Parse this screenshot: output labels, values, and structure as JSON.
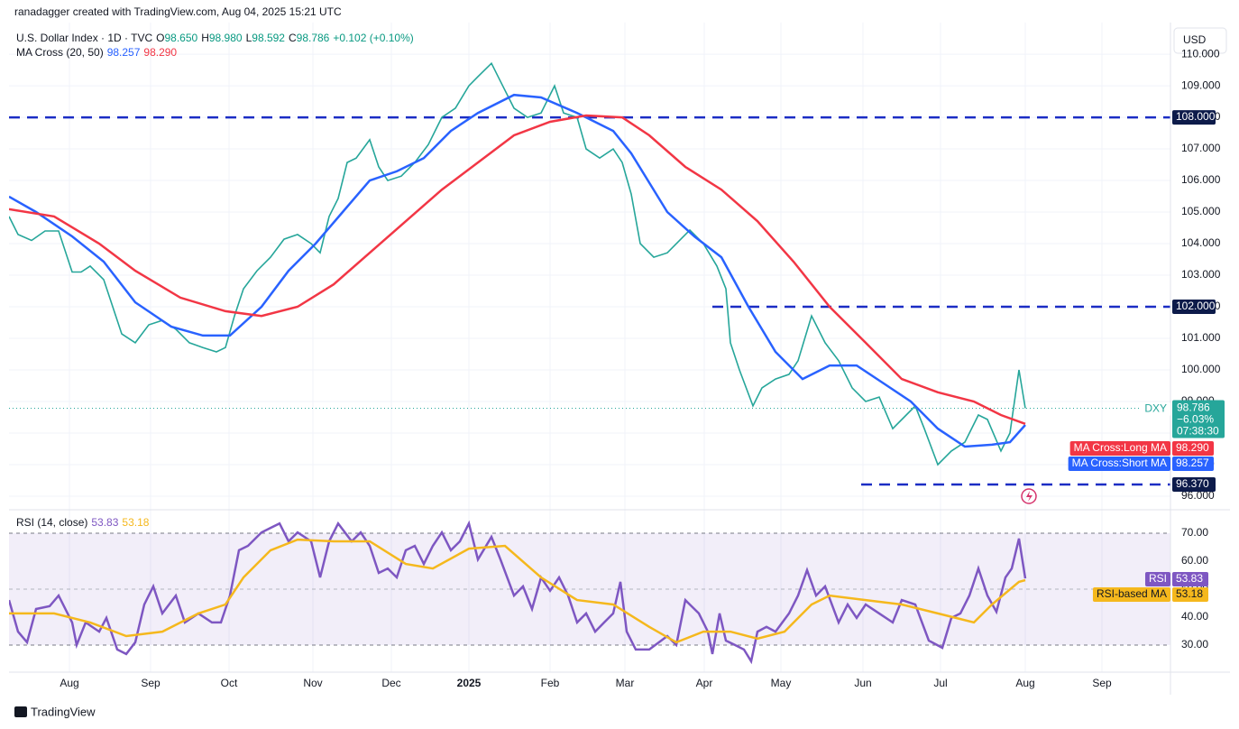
{
  "header": {
    "attribution": "ranadagger created with TradingView.com, Aug 04, 2025 15:21 UTC",
    "symbol": "U.S. Dollar Index · 1D · TVC",
    "ohlc": [
      {
        "label": "O",
        "value": "98.650"
      },
      {
        "label": "H",
        "value": "98.980"
      },
      {
        "label": "L",
        "value": "98.592"
      },
      {
        "label": "C",
        "value": "98.786"
      }
    ],
    "change": "+0.102 (+0.10%)",
    "indicator": "MA Cross (20, 50)",
    "currency": "USD"
  },
  "footer": {
    "brand": "TradingView"
  },
  "chart_data": [
    {
      "type": "line",
      "xlim": [
        0,
        257.6
      ],
      "ylim": [
        95.57,
        110.86
      ],
      "xticks": [
        {
          "value": 13.4,
          "label": "Aug"
        },
        {
          "value": 31.4,
          "label": "Sep"
        },
        {
          "value": 48.8,
          "label": "Oct"
        },
        {
          "value": 67.4,
          "label": "Nov"
        },
        {
          "value": 84.8,
          "label": "Dec"
        },
        {
          "value": 102,
          "label": "2025"
        },
        {
          "value": 120,
          "label": "Feb"
        },
        {
          "value": 136.6,
          "label": "Mar"
        },
        {
          "value": 154.2,
          "label": "Apr"
        },
        {
          "value": 171.2,
          "label": "May"
        },
        {
          "value": 189.4,
          "label": "Jun"
        },
        {
          "value": 206.6,
          "label": "Jul"
        },
        {
          "value": 225.4,
          "label": "Aug"
        },
        {
          "value": 242.4,
          "label": "Sep"
        }
      ],
      "yticks": [
        {
          "value": 96,
          "label": "96.000"
        },
        {
          "value": 97,
          "label": "97.000"
        },
        {
          "value": 98,
          "label": "98.000"
        },
        {
          "value": 99,
          "label": "99.000"
        },
        {
          "value": 100,
          "label": "100.000"
        },
        {
          "value": 101,
          "label": "101.000"
        },
        {
          "value": 102,
          "label": "102.000"
        },
        {
          "value": 103,
          "label": "103.000"
        },
        {
          "value": 104,
          "label": "104.000"
        },
        {
          "value": 105,
          "label": "105.000"
        },
        {
          "value": 106,
          "label": "106.000"
        },
        {
          "value": 107,
          "label": "107.000"
        },
        {
          "value": 108,
          "label": "108.000"
        },
        {
          "value": 109,
          "label": "109.000"
        },
        {
          "value": 110,
          "label": "110.000"
        }
      ],
      "grid": true,
      "series": [
        {
          "name": "DXY",
          "color": "#26a69a",
          "x": [
            0,
            2,
            5,
            8,
            11,
            14,
            16,
            18,
            21,
            23,
            25,
            28,
            31,
            34,
            37,
            40,
            43,
            46,
            48,
            50,
            52,
            55,
            58,
            61,
            64,
            67,
            69,
            71,
            73,
            75,
            77,
            80,
            82,
            84,
            87,
            90,
            93,
            96,
            99,
            102,
            104,
            107,
            109,
            112,
            115,
            118,
            121,
            123,
            126,
            128,
            131,
            134,
            136,
            138,
            140,
            143,
            146,
            149,
            151,
            154,
            157,
            159,
            160,
            162,
            165,
            167,
            170,
            173,
            175,
            178,
            181,
            184,
            187,
            190,
            193,
            196,
            199,
            201,
            203,
            206,
            209,
            212,
            215,
            217,
            220,
            222,
            224,
            225.4
          ],
          "values": [
            104.86,
            104.29,
            104.1,
            104.4,
            104.4,
            103.1,
            103.1,
            103.29,
            102.86,
            102,
            101.14,
            100.86,
            101.43,
            101.57,
            101.29,
            100.86,
            100.71,
            100.57,
            100.71,
            101.71,
            102.57,
            103.14,
            103.57,
            104.14,
            104.29,
            104,
            103.71,
            104.86,
            105.43,
            106.57,
            106.71,
            107.29,
            106.43,
            106,
            106.14,
            106.57,
            107.14,
            108,
            108.29,
            109,
            109.29,
            109.71,
            109.14,
            108.29,
            108,
            108.14,
            109,
            108.14,
            108,
            107,
            106.71,
            107,
            106.57,
            105.57,
            104,
            103.57,
            103.71,
            104.14,
            104.43,
            104,
            103.29,
            102.57,
            100.86,
            100,
            98.86,
            99.43,
            99.71,
            99.86,
            100.29,
            101.71,
            100.86,
            100.29,
            99.43,
            99,
            99.14,
            98.14,
            98.57,
            98.86,
            98.14,
            97,
            97.43,
            97.71,
            98.57,
            98.43,
            97.43,
            98,
            100,
            98.786
          ],
          "last_value_label": "98.786",
          "change": "−6.03%",
          "countdown": "07:38:30"
        },
        {
          "name": "MA Cross:Short MA",
          "color": "#2962ff",
          "x": [
            0,
            6,
            14,
            21,
            28,
            36,
            43,
            49,
            56,
            62,
            68,
            74,
            80,
            86,
            92,
            98,
            104,
            112,
            118,
            126,
            134,
            138,
            146,
            152,
            158,
            164,
            170,
            176,
            182,
            188,
            194,
            200,
            206,
            212,
            218,
            222,
            225.4
          ],
          "values": [
            105.49,
            105,
            104.23,
            103.43,
            102.14,
            101.37,
            101.09,
            101.09,
            102,
            103.14,
            104,
            105,
            106,
            106.29,
            106.71,
            107.57,
            108.14,
            108.71,
            108.63,
            108.14,
            107.57,
            106.86,
            105,
            104.23,
            103.57,
            102,
            100.57,
            99.71,
            100.14,
            100.14,
            99.57,
            99,
            98.14,
            97.57,
            97.63,
            97.71,
            98.257
          ],
          "last_value_label": "98.257"
        },
        {
          "name": "MA Cross:Long MA",
          "color": "#f23645",
          "x": [
            0,
            10,
            20,
            28,
            38,
            48,
            56,
            64,
            72,
            80,
            88,
            96,
            104,
            112,
            120,
            128,
            136,
            142,
            150,
            158,
            166,
            174,
            182,
            190,
            198,
            206,
            214,
            220,
            225.4
          ],
          "values": [
            105.09,
            104.86,
            104,
            103.14,
            102.29,
            101.86,
            101.71,
            102,
            102.71,
            103.71,
            104.71,
            105.71,
            106.57,
            107.43,
            107.86,
            108.06,
            108,
            107.43,
            106.43,
            105.71,
            104.71,
            103.43,
            102,
            100.86,
            99.71,
            99.29,
            99,
            98.57,
            98.29
          ],
          "last_value_label": "98.290"
        }
      ],
      "hlines": [
        {
          "value": 108,
          "label": "108.000",
          "x_start": 0
        },
        {
          "value": 102,
          "label": "102.000",
          "x_start": 156
        },
        {
          "value": 96.37,
          "label": "96.370",
          "x_start": 189
        }
      ],
      "hline_color": "#1b2dc4"
    },
    {
      "type": "line",
      "title": "RSI (14, close)",
      "xlim": [
        0,
        257.6
      ],
      "ylim": [
        20.3,
        78.4
      ],
      "yticks": [
        {
          "value": 30,
          "label": "30.00"
        },
        {
          "value": 40,
          "label": "40.00"
        },
        {
          "value": 50,
          "label": "50.00"
        },
        {
          "value": 60,
          "label": "60.00"
        },
        {
          "value": 70,
          "label": "70.00"
        }
      ],
      "band": [
        30,
        70
      ],
      "midline": 50,
      "series": [
        {
          "name": "RSI",
          "color": "#7e57c2",
          "x": [
            0,
            2,
            4,
            6,
            9,
            11,
            14,
            15,
            17,
            20,
            21.6,
            24,
            26,
            28,
            30,
            32,
            34,
            37,
            39,
            42,
            45,
            47,
            49,
            51,
            53,
            56,
            58,
            60,
            62,
            64,
            67,
            69,
            71,
            73,
            76,
            78,
            80,
            82,
            84,
            86,
            88,
            90,
            92,
            94,
            96,
            98,
            100,
            102,
            104,
            107,
            109,
            112,
            114,
            116,
            118,
            120,
            122,
            124,
            126,
            128,
            130,
            132,
            134,
            135.6,
            137,
            139,
            142,
            146,
            148,
            150,
            153,
            155,
            156,
            157.6,
            159,
            161,
            163,
            164.6,
            166,
            168,
            170,
            173,
            175,
            177,
            179,
            181,
            184,
            186,
            188,
            190,
            193,
            196,
            198,
            201,
            204,
            207,
            209,
            211,
            213,
            215,
            217,
            219,
            221,
            222.4,
            224,
            225.4
          ],
          "values": [
            46.1,
            34.8,
            31,
            42.9,
            43.9,
            47.7,
            38.1,
            30,
            38.1,
            34.8,
            39.7,
            28.4,
            26.8,
            31,
            44.5,
            51,
            41.3,
            47.7,
            38.1,
            41.3,
            38.1,
            38.1,
            47.7,
            63.9,
            65.5,
            70.3,
            71.9,
            73.5,
            67.1,
            70.3,
            67.1,
            54.2,
            67.1,
            73.5,
            67.1,
            70.3,
            65.5,
            55.8,
            57.4,
            54.2,
            63.9,
            65.5,
            59,
            65.5,
            70.3,
            63.9,
            67.1,
            73.5,
            60.6,
            68.7,
            60.6,
            47.7,
            51,
            42.9,
            54.2,
            49.4,
            54.2,
            47.7,
            38.1,
            41.3,
            34.8,
            38.1,
            41.3,
            52.6,
            34.8,
            28.4,
            28.4,
            33.2,
            30,
            46.1,
            41.3,
            34.8,
            26.8,
            41.3,
            31.6,
            30,
            28.4,
            24.2,
            34.8,
            36.5,
            34.8,
            41.3,
            47.7,
            56.8,
            47.7,
            51,
            38.1,
            44.5,
            39.7,
            44.5,
            41.3,
            38.1,
            46.1,
            44.5,
            31.6,
            29,
            39.7,
            41.3,
            47.7,
            57.4,
            47.7,
            41.9,
            54.2,
            57.4,
            68.1,
            53.83
          ],
          "last_value_label": "53.83"
        },
        {
          "name": "RSI-based MA",
          "color": "#f5b81d",
          "x": [
            0,
            10,
            18,
            26,
            34,
            42,
            48,
            52,
            58,
            64,
            72,
            80,
            88,
            94,
            102,
            110,
            118,
            126,
            134,
            142,
            148,
            154,
            160,
            166,
            172,
            178,
            182,
            190,
            198,
            206,
            214,
            218,
            224,
            225.4
          ],
          "values": [
            41.3,
            41.3,
            38.1,
            33.2,
            34.8,
            41.3,
            44.5,
            54.2,
            63.9,
            67.7,
            67.1,
            67.1,
            59,
            57.4,
            64.5,
            65.5,
            54.2,
            46.1,
            44.5,
            36.5,
            31,
            34.8,
            34.8,
            32.3,
            34.8,
            44.5,
            47.7,
            46.1,
            44.5,
            41.3,
            38.1,
            44.5,
            52.6,
            53.18
          ],
          "last_value_label": "53.18"
        }
      ]
    }
  ]
}
